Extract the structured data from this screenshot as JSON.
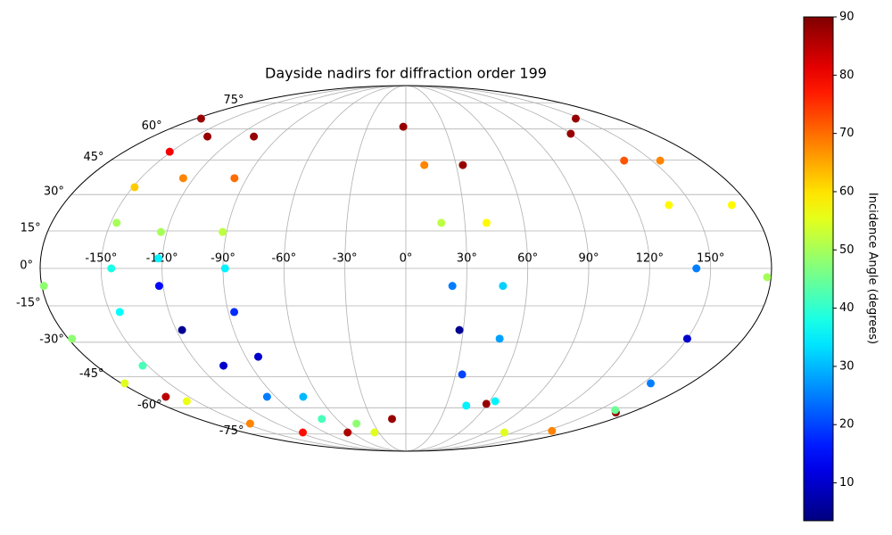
{
  "chart_data": {
    "type": "scatter",
    "projection": "mollweide",
    "title": "Dayside nadirs for diffraction order 199",
    "colorbar_label": "Incidence Angle (degrees)",
    "colormap": "jet",
    "clim": [
      3.5,
      90
    ],
    "cticks": [
      10,
      20,
      30,
      40,
      50,
      60,
      70,
      80,
      90
    ],
    "grid": true,
    "xlim": [
      -180,
      180
    ],
    "ylim": [
      -90,
      90
    ],
    "xticks": [
      {
        "value": -150,
        "label": "-150°"
      },
      {
        "value": -120,
        "label": "-120°"
      },
      {
        "value": -90,
        "label": "-90°"
      },
      {
        "value": -60,
        "label": "-60°"
      },
      {
        "value": -30,
        "label": "-30°"
      },
      {
        "value": 0,
        "label": "0°"
      },
      {
        "value": 30,
        "label": "30°"
      },
      {
        "value": 60,
        "label": "60°"
      },
      {
        "value": 90,
        "label": "90°"
      },
      {
        "value": 120,
        "label": "120°"
      },
      {
        "value": 150,
        "label": "150°"
      }
    ],
    "yticks": [
      {
        "value": -75,
        "label": "-75°"
      },
      {
        "value": -60,
        "label": "-60°"
      },
      {
        "value": -45,
        "label": "-45°"
      },
      {
        "value": -30,
        "label": "-30°"
      },
      {
        "value": -15,
        "label": "-15°"
      },
      {
        "value": 0,
        "label": "0°"
      },
      {
        "value": 15,
        "label": "15°"
      },
      {
        "value": 30,
        "label": "30°"
      },
      {
        "value": 45,
        "label": "45°"
      },
      {
        "value": 60,
        "label": "60°"
      },
      {
        "value": 75,
        "label": "75°"
      }
    ],
    "x": [
      -176,
      -151,
      -149,
      -147,
      -145,
      -145,
      -153,
      -157,
      -145,
      -115,
      -65,
      -141,
      -126,
      -123,
      -122,
      -122,
      -117,
      -106,
      -96,
      -73,
      -35,
      -108,
      -97,
      -92,
      -89,
      -87,
      -83,
      -71,
      -46,
      -12,
      -2,
      11,
      18,
      23,
      28,
      34,
      45,
      59,
      34,
      41,
      48,
      50,
      64,
      110,
      157,
      168,
      146,
      155,
      171,
      178,
      -179,
      -178,
      -178,
      -166,
      120,
      133,
      138,
      143,
      150,
      155,
      163
    ],
    "y": [
      65.6,
      48.9,
      33.1,
      18.3,
      0,
      -17.5,
      -40.1,
      -56.7,
      -68.6,
      -74,
      -74,
      56.2,
      37,
      14.6,
      4,
      -7,
      -24.9,
      -40.1,
      -54.5,
      -66,
      -74,
      56.2,
      37,
      14.6,
      0,
      -17.5,
      -36.2,
      -54.5,
      -68.6,
      -66,
      61.2,
      42.8,
      18.3,
      -7,
      -24.9,
      -44,
      -58.9,
      -58,
      42.8,
      18.3,
      -7,
      -28.5,
      -56.7,
      -74,
      -73,
      -62.5,
      65.6,
      44.8,
      25.6,
      -3.5,
      -7,
      -28.5,
      -48.1,
      -54.5,
      57.6,
      44.8,
      25.6,
      0,
      -28.5,
      -48.1,
      -61.2
    ],
    "values": [
      88,
      80,
      62,
      50,
      38,
      36,
      42,
      56,
      68,
      78,
      86,
      88,
      68,
      50,
      35,
      15,
      5,
      10,
      25,
      42,
      55,
      88,
      70,
      52,
      35,
      18,
      10,
      30,
      48,
      88,
      88,
      68,
      52,
      25,
      5,
      20,
      35,
      88,
      88,
      58,
      32,
      28,
      35,
      55,
      68,
      88,
      88,
      68,
      58,
      50,
      48,
      48,
      55,
      85,
      88,
      72,
      58,
      25,
      10,
      25,
      45
    ]
  }
}
